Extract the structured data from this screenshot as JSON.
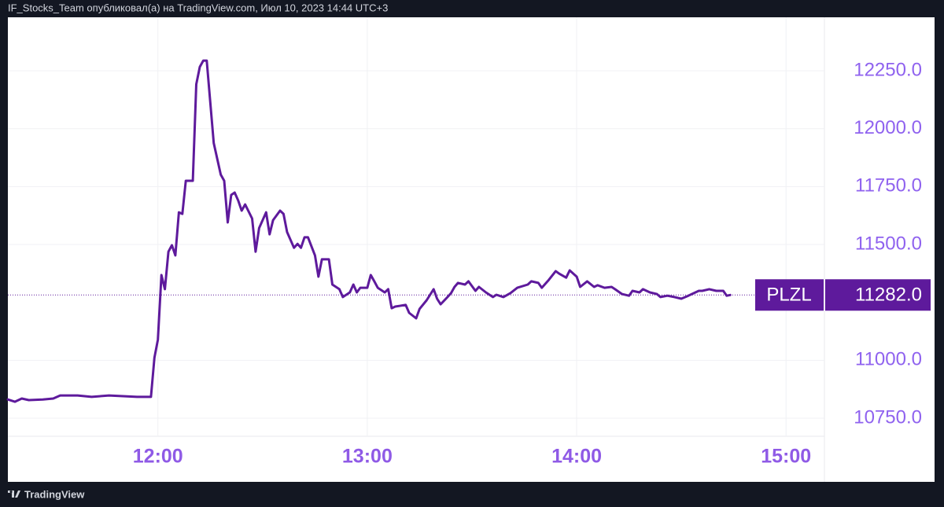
{
  "header": "IF_Stocks_Team опубликовал(а) на TradingView.com, Июл 10, 2023 14:44 UTC+3",
  "footer": "TradingView",
  "chart_data": {
    "type": "line",
    "x": [
      "11:17",
      "11:19",
      "11:21",
      "11:23",
      "11:27",
      "11:30",
      "11:32",
      "11:37",
      "11:41",
      "11:46",
      "11:50",
      "11:54",
      "11:58",
      "11:59",
      "12:00",
      "12:01",
      "12:02",
      "12:03",
      "12:04",
      "12:05",
      "12:06",
      "12:07",
      "12:08",
      "12:10",
      "12:11",
      "12:12",
      "12:13",
      "12:14",
      "12:15",
      "12:16",
      "12:18",
      "12:19",
      "12:20",
      "12:21",
      "12:22",
      "12:23",
      "12:24",
      "12:25",
      "12:27",
      "12:28",
      "12:29",
      "12:31",
      "12:32",
      "12:33",
      "12:35",
      "12:36",
      "12:37",
      "12:39",
      "12:40",
      "12:41",
      "12:42",
      "12:43",
      "12:45",
      "12:46",
      "12:47",
      "12:49",
      "12:50",
      "12:52",
      "12:53",
      "12:55",
      "12:56",
      "12:57",
      "12:58",
      "13:00",
      "13:01",
      "13:02",
      "13:03",
      "13:05",
      "13:06",
      "13:07",
      "13:08",
      "13:11",
      "13:12",
      "13:14",
      "13:15",
      "13:17",
      "13:19",
      "13:20",
      "13:21",
      "13:23",
      "13:24",
      "13:25",
      "13:26",
      "13:28",
      "13:29",
      "13:31",
      "13:32",
      "13:34",
      "13:36",
      "13:37",
      "13:39",
      "13:41",
      "13:43",
      "13:46",
      "13:47",
      "13:49",
      "13:50",
      "13:52",
      "13:54",
      "13:55",
      "13:57",
      "13:58",
      "14:00",
      "14:01",
      "14:03",
      "14:05",
      "14:06",
      "14:08",
      "14:10",
      "14:11",
      "14:13",
      "14:15",
      "14:16",
      "14:18",
      "14:19",
      "14:21",
      "14:23",
      "14:24",
      "14:26",
      "14:28",
      "14:30",
      "14:32",
      "14:33",
      "14:35",
      "14:36",
      "14:38",
      "14:40",
      "14:42",
      "14:43",
      "14:44"
    ],
    "series": [
      {
        "name": "PLZL",
        "color": "#5e1a9c",
        "values": [
          10831,
          10821,
          10835,
          10828,
          10831,
          10835,
          10848,
          10848,
          10842,
          10848,
          10845,
          10842,
          10842,
          11011,
          11089,
          11368,
          11307,
          11469,
          11497,
          11453,
          11639,
          11632,
          11775,
          11775,
          12192,
          12267,
          12294,
          12294,
          12114,
          11938,
          11802,
          11775,
          11595,
          11714,
          11724,
          11690,
          11646,
          11673,
          11612,
          11469,
          11571,
          11639,
          11544,
          11605,
          11646,
          11632,
          11554,
          11486,
          11503,
          11486,
          11531,
          11531,
          11453,
          11361,
          11436,
          11436,
          11327,
          11307,
          11273,
          11293,
          11327,
          11293,
          11313,
          11313,
          11368,
          11341,
          11313,
          11293,
          11307,
          11225,
          11232,
          11239,
          11205,
          11181,
          11222,
          11259,
          11307,
          11266,
          11242,
          11273,
          11290,
          11317,
          11334,
          11327,
          11341,
          11300,
          11317,
          11293,
          11273,
          11283,
          11273,
          11290,
          11313,
          11327,
          11341,
          11334,
          11313,
          11347,
          11385,
          11374,
          11357,
          11388,
          11361,
          11317,
          11341,
          11317,
          11324,
          11313,
          11317,
          11307,
          11286,
          11279,
          11300,
          11293,
          11307,
          11293,
          11286,
          11273,
          11279,
          11273,
          11266,
          11279,
          11286,
          11300,
          11300,
          11307,
          11300,
          11300,
          11279,
          11282
        ]
      }
    ],
    "last_price": {
      "value": 11282,
      "label": "11282.0"
    },
    "xlim": [
      "11:17",
      "15:11"
    ],
    "xticks": [
      "12:00",
      "13:00",
      "14:00",
      "15:00"
    ],
    "ylim": [
      10672,
      12481
    ],
    "yticks": [
      {
        "value": 10750,
        "label": "10750.0"
      },
      {
        "value": 11000,
        "label": "11000.0"
      },
      {
        "value": 11500,
        "label": "11500.0"
      },
      {
        "value": 11750,
        "label": "11750.0"
      },
      {
        "value": 12000,
        "label": "12000.0"
      },
      {
        "value": 12250,
        "label": "12250.0"
      }
    ],
    "grid": true
  }
}
